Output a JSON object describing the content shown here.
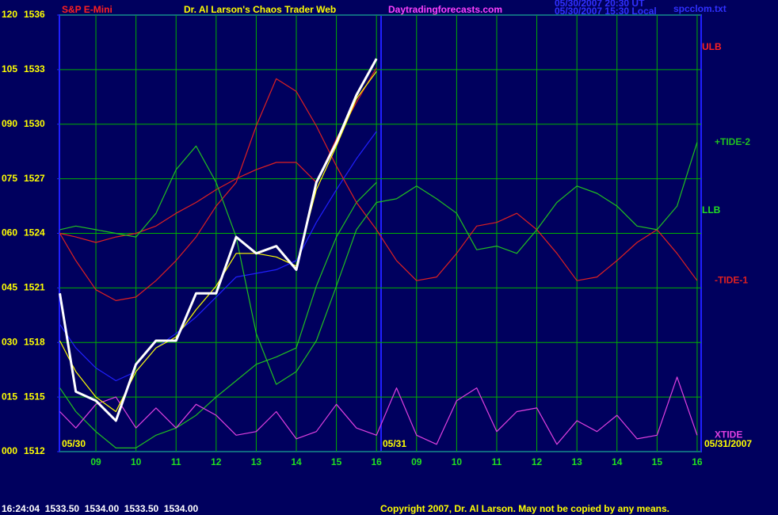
{
  "chart_data": {
    "type": "line",
    "instrument": "S&P E-Mini",
    "title": "Dr. Al Larson's Chaos Trader Web",
    "website": "Daytradingforecasts.com",
    "timestamps": [
      "05/30/2007 20:30 UT",
      "05/30/2007 15:30 Local"
    ],
    "file": "spcclom.txt",
    "quote": "16:24:04  1533.50  1534.00  1533.50  1534.00",
    "copyright": "Copyright 2007, Dr. Al Larson. May not be copied by any means.",
    "date_labels": [
      "05/30",
      "05/31",
      "05/31/2007"
    ],
    "annotations": [
      {
        "text": "ULB",
        "color": "#ff2020"
      },
      {
        "text": "LLB",
        "color": "#20e020"
      }
    ],
    "x": [
      0.1,
      0.5,
      1,
      1.5,
      2,
      2.5,
      3,
      3.5,
      4,
      4.5,
      5,
      5.5,
      6,
      6.5,
      7,
      7.5,
      8,
      8.5,
      9,
      9.5,
      10,
      10.5,
      11,
      11.5,
      12,
      12.5,
      13,
      13.5,
      14,
      14.5,
      15,
      15.5,
      16
    ],
    "xlim": [
      0.09,
      16.1
    ],
    "xticks": [
      {
        "value": 1,
        "label": "09"
      },
      {
        "value": 2,
        "label": "10"
      },
      {
        "value": 3,
        "label": "11"
      },
      {
        "value": 4,
        "label": "12"
      },
      {
        "value": 5,
        "label": "13"
      },
      {
        "value": 6,
        "label": "14"
      },
      {
        "value": 7,
        "label": "15"
      },
      {
        "value": 8,
        "label": "16"
      },
      {
        "value": 9,
        "label": "09"
      },
      {
        "value": 10,
        "label": "10"
      },
      {
        "value": 11,
        "label": "11"
      },
      {
        "value": 12,
        "label": "12"
      },
      {
        "value": 13,
        "label": "13"
      },
      {
        "value": 14,
        "label": "14"
      },
      {
        "value": 15,
        "label": "15"
      },
      {
        "value": 16,
        "label": "16"
      }
    ],
    "ylim": [
      1512,
      1536
    ],
    "yticks": [
      1512,
      1515,
      1518,
      1521,
      1524,
      1527,
      1530,
      1533,
      1536
    ],
    "y2lim": [
      0,
      120
    ],
    "y2ticks": [
      {
        "value": 0,
        "label": "000"
      },
      {
        "value": 15,
        "label": "015"
      },
      {
        "value": 30,
        "label": "030"
      },
      {
        "value": 45,
        "label": "045"
      },
      {
        "value": 60,
        "label": "060"
      },
      {
        "value": 75,
        "label": "075"
      },
      {
        "value": 90,
        "label": "090"
      },
      105,
      120
    ],
    "grid": true,
    "series": [
      {
        "color": "#2020ff",
        "values": [
          1519.0,
          1517.7,
          1516.6,
          1515.9,
          1516.4,
          1517.7,
          1518.5,
          1519.4,
          1520.5,
          1521.6,
          1521.8,
          1522.0,
          1522.5,
          1524.6,
          1526.4,
          1528.1,
          1529.6,
          null,
          null,
          null,
          null,
          null,
          null,
          null,
          null,
          null,
          null,
          null,
          null,
          null,
          null,
          null,
          null
        ]
      },
      {
        "color": "#e02020",
        "values": [
          1524.0,
          1523.8,
          1523.5,
          1523.8,
          1524.0,
          1524.4,
          1525.1,
          1525.7,
          1526.4,
          1527.0,
          1527.5,
          1527.9,
          1527.9,
          1526.8,
          1529.2,
          1531.2,
          1533.1,
          null,
          null,
          null,
          null,
          null,
          null,
          null,
          null,
          null,
          null,
          null,
          null,
          null,
          null,
          null,
          null
        ]
      },
      {
        "color": "#20c020",
        "values": [
          1515.5,
          1514.2,
          1513.1,
          1512.2,
          1512.2,
          1512.9,
          1513.3,
          1514.0,
          1515.0,
          1515.9,
          1516.8,
          1517.2,
          1517.7,
          1521.1,
          1523.8,
          1525.7,
          1526.8,
          null,
          null,
          null,
          null,
          null,
          null,
          null,
          null,
          null,
          null,
          null,
          null,
          null,
          null,
          null,
          null
        ]
      },
      {
        "name": "-TIDE-1",
        "color": "#e02020",
        "values": [
          1524.0,
          1522.5,
          1520.9,
          1520.3,
          1520.5,
          1521.4,
          1522.5,
          1523.8,
          1525.5,
          1526.8,
          1529.9,
          1532.5,
          1531.8,
          1529.9,
          1527.7,
          1525.7,
          1524.2,
          1522.5,
          1521.4,
          1521.6,
          1522.9,
          1524.4,
          1524.6,
          1525.1,
          1524.2,
          1522.9,
          1521.4,
          1521.6,
          1522.5,
          1523.5,
          1524.2,
          1522.9,
          1521.4
        ]
      },
      {
        "name": "+TIDE-2",
        "color": "#20c020",
        "values": [
          1524.2,
          1524.4,
          1524.2,
          1524.0,
          1523.8,
          1525.1,
          1527.5,
          1528.8,
          1526.8,
          1523.8,
          1518.5,
          1515.7,
          1516.4,
          1518.1,
          1521.1,
          1524.2,
          1525.7,
          1525.9,
          1526.6,
          1525.9,
          1525.1,
          1523.1,
          1523.3,
          1522.9,
          1524.2,
          1525.7,
          1526.6,
          1526.2,
          1525.5,
          1524.4,
          1524.2,
          1525.5,
          1529.0
        ]
      },
      {
        "name": "XTIDE",
        "color": "#e040e0",
        "values": [
          1514.2,
          1513.3,
          1514.6,
          1515.0,
          1513.3,
          1514.4,
          1513.3,
          1514.6,
          1514.0,
          1512.9,
          1513.1,
          1514.2,
          1512.7,
          1513.1,
          1514.6,
          1513.3,
          1512.9,
          1515.5,
          1512.9,
          1512.4,
          1514.8,
          1515.5,
          1513.1,
          1514.2,
          1514.4,
          1512.4,
          1513.7,
          1513.1,
          1514.0,
          1512.7,
          1512.9,
          1516.1,
          1512.9
        ]
      },
      {
        "color": "#ffff00",
        "values": [
          1518.1,
          1516.4,
          1515.0,
          1514.2,
          1516.4,
          1517.7,
          1518.3,
          1519.8,
          1521.1,
          1522.9,
          1522.9,
          1522.7,
          1522.2,
          1526.4,
          1528.8,
          1531.4,
          1532.9,
          null,
          null,
          null,
          null,
          null,
          null,
          null,
          null,
          null,
          null,
          null,
          null,
          null,
          null,
          null,
          null
        ]
      },
      {
        "color": "#ffffff",
        "values": [
          1520.7,
          1515.3,
          1514.8,
          1513.7,
          1516.8,
          1518.1,
          1518.1,
          1520.7,
          1520.7,
          1523.8,
          1522.9,
          1523.3,
          1522.0,
          1526.8,
          1529.0,
          1531.6,
          1533.6,
          null,
          null,
          null,
          null,
          null,
          null,
          null,
          null,
          null,
          null,
          null,
          null,
          null,
          null,
          null,
          null
        ]
      }
    ]
  }
}
